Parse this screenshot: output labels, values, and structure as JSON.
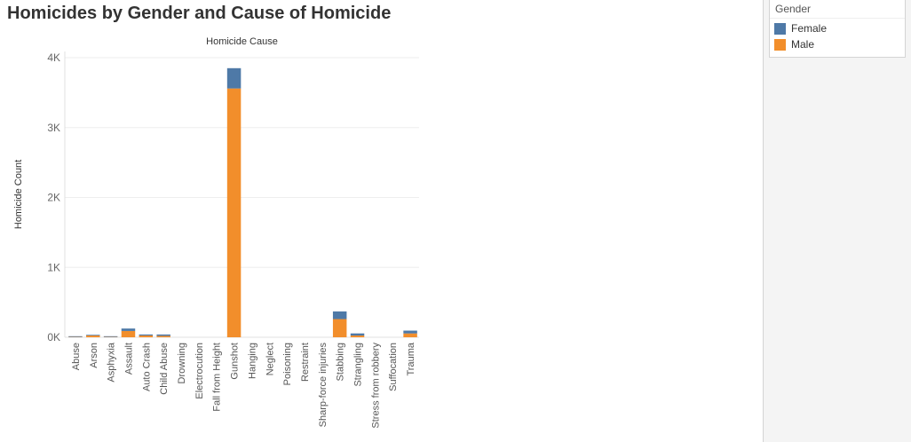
{
  "page": {
    "title": "Homicides by Gender and Cause of Homicide"
  },
  "legend": {
    "title": "Gender",
    "items": [
      {
        "label": "Female",
        "color": "#4e79a7"
      },
      {
        "label": "Male",
        "color": "#f28e2b"
      }
    ]
  },
  "chart_data": {
    "type": "bar",
    "stacked": true,
    "title": "Homicide Cause",
    "xlabel": "",
    "ylabel": "Homicide Count",
    "ylim": [
      0,
      4000
    ],
    "yticks": [
      0,
      1000,
      2000,
      3000,
      4000
    ],
    "ytick_labels": [
      "0K",
      "1K",
      "2K",
      "3K",
      "4K"
    ],
    "grid": true,
    "legend_position": "top-right",
    "categories": [
      "Abuse",
      "Arson",
      "Asphyxia",
      "Assault",
      "Auto Crash",
      "Child Abuse",
      "Drowning",
      "Electrocution",
      "Fall from Height",
      "Gunshot",
      "Hanging",
      "Neglect",
      "Poisoning",
      "Restraint",
      "Sharp-force injuries",
      "Stabbing",
      "Strangling",
      "Stress from robbery",
      "Suffocation",
      "Trauma"
    ],
    "series": [
      {
        "name": "Male",
        "color": "#f28e2b",
        "values": [
          5,
          25,
          5,
          90,
          25,
          20,
          1,
          1,
          1,
          3560,
          1,
          1,
          1,
          1,
          1,
          260,
          25,
          1,
          1,
          55
        ]
      },
      {
        "name": "Female",
        "color": "#4e79a7",
        "values": [
          10,
          10,
          10,
          35,
          15,
          20,
          1,
          1,
          1,
          290,
          1,
          1,
          1,
          1,
          1,
          110,
          30,
          1,
          1,
          40
        ]
      }
    ]
  }
}
